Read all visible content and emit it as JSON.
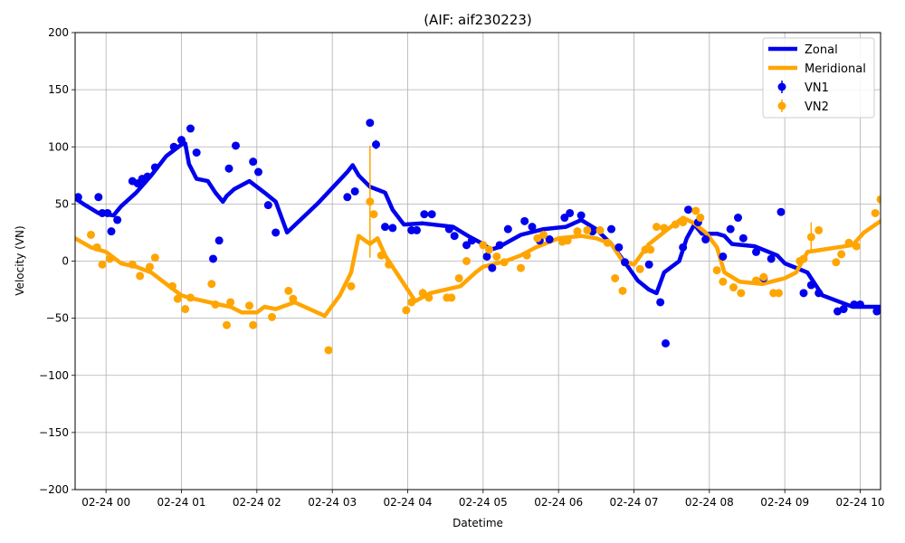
{
  "chart_data": {
    "type": "line",
    "title": "(AIF: aif230223)",
    "xlabel": "Datetime",
    "ylabel": "Velocity (VN)",
    "x_unit": "hours since 02-24 00:00",
    "xlim": [
      -0.41,
      10.27
    ],
    "ylim": [
      -200,
      200
    ],
    "grid": true,
    "legend_position": "top-right",
    "x_tick_values": [
      0,
      1,
      2,
      3,
      4,
      5,
      6,
      7,
      8,
      9,
      10
    ],
    "x_tick_labels": [
      "02-24 00",
      "02-24 01",
      "02-24 02",
      "02-24 03",
      "02-24 04",
      "02-24 05",
      "02-24 06",
      "02-24 07",
      "02-24 08",
      "02-24 09",
      "02-24 10"
    ],
    "y_tick_values": [
      -200,
      -150,
      -100,
      -50,
      0,
      50,
      100,
      150,
      200
    ],
    "y_tick_labels": [
      "−200",
      "−150",
      "−100",
      "−50",
      "0",
      "50",
      "100",
      "150",
      "200"
    ],
    "series": [
      {
        "name": "Zonal",
        "kind": "line",
        "color": "#0000ee",
        "x": [
          -0.41,
          -0.3,
          -0.1,
          0.1,
          0.2,
          0.4,
          0.6,
          0.8,
          1.0,
          1.05,
          1.1,
          1.2,
          1.35,
          1.45,
          1.55,
          1.6,
          1.7,
          1.9,
          2.1,
          2.25,
          2.4,
          2.8,
          3.2,
          3.27,
          3.35,
          3.5,
          3.7,
          3.8,
          3.95,
          4.2,
          4.6,
          4.8,
          5.0,
          5.1,
          5.2,
          5.5,
          5.8,
          6.1,
          6.3,
          6.5,
          6.7,
          6.9,
          7.05,
          7.2,
          7.3,
          7.4,
          7.6,
          7.7,
          7.8,
          7.9,
          8.1,
          8.2,
          8.3,
          8.6,
          8.9,
          9.0,
          9.3,
          9.5,
          9.7,
          9.9,
          10.1,
          10.27
        ],
        "y": [
          55,
          50,
          42,
          40,
          48,
          60,
          75,
          92,
          102,
          103,
          85,
          72,
          70,
          60,
          52,
          57,
          63,
          70,
          60,
          52,
          25,
          50,
          78,
          84,
          75,
          65,
          60,
          45,
          32,
          33,
          30,
          22,
          15,
          10,
          12,
          23,
          28,
          30,
          36,
          28,
          15,
          -3,
          -17,
          -25,
          -28,
          -10,
          0,
          20,
          32,
          24,
          24,
          22,
          15,
          13,
          5,
          -2,
          -10,
          -30,
          -35,
          -40,
          -40,
          -40
        ]
      },
      {
        "name": "Meridional",
        "kind": "line",
        "color": "#ffa500",
        "x": [
          -0.41,
          -0.2,
          0.0,
          0.1,
          0.2,
          0.4,
          0.6,
          0.8,
          1.0,
          1.1,
          1.3,
          1.5,
          1.65,
          1.8,
          2.0,
          2.1,
          2.25,
          2.5,
          2.9,
          3.1,
          3.25,
          3.35,
          3.5,
          3.6,
          3.7,
          3.85,
          4.0,
          4.1,
          4.3,
          4.5,
          4.7,
          4.9,
          5.0,
          5.3,
          5.5,
          5.7,
          6.0,
          6.3,
          6.5,
          6.7,
          6.85,
          7.0,
          7.2,
          7.45,
          7.65,
          7.8,
          7.95,
          8.1,
          8.2,
          8.4,
          8.7,
          9.0,
          9.15,
          9.3,
          9.5,
          9.7,
          9.9,
          10.05,
          10.27
        ],
        "y": [
          20,
          12,
          8,
          3,
          -2,
          -5,
          -10,
          -20,
          -30,
          -32,
          -35,
          -38,
          -40,
          -45,
          -45,
          -40,
          -42,
          -36,
          -48,
          -30,
          -10,
          22,
          15,
          20,
          5,
          -10,
          -25,
          -35,
          -28,
          -25,
          -22,
          -10,
          -5,
          0,
          5,
          12,
          20,
          22,
          20,
          15,
          0,
          -3,
          15,
          28,
          38,
          33,
          25,
          12,
          -10,
          -18,
          -20,
          -15,
          -10,
          8,
          10,
          12,
          14,
          25,
          35
        ]
      },
      {
        "name": "VN1",
        "kind": "scatter",
        "color": "#0000ee",
        "x": [
          -0.37,
          -0.1,
          -0.05,
          0.02,
          0.07,
          0.15,
          0.35,
          0.42,
          0.48,
          0.55,
          0.65,
          0.9,
          1.0,
          1.12,
          1.2,
          1.42,
          1.5,
          1.63,
          1.72,
          1.95,
          2.02,
          2.15,
          2.25,
          3.2,
          3.3,
          3.5,
          3.58,
          3.7,
          3.8,
          4.05,
          4.12,
          4.22,
          4.32,
          4.55,
          4.62,
          4.78,
          4.85,
          5.05,
          5.12,
          5.22,
          5.33,
          5.55,
          5.65,
          5.75,
          5.88,
          6.08,
          6.15,
          6.3,
          6.45,
          6.7,
          6.8,
          6.88,
          7.2,
          7.35,
          7.42,
          7.65,
          7.72,
          7.85,
          7.95,
          8.18,
          8.28,
          8.38,
          8.45,
          8.62,
          8.72,
          8.82,
          8.95,
          9.25,
          9.35,
          9.45,
          9.7,
          9.78,
          9.92,
          10.0,
          10.22
        ],
        "y": [
          56,
          56,
          42,
          42,
          26,
          36,
          70,
          68,
          72,
          74,
          82,
          100,
          106,
          116,
          95,
          2,
          18,
          81,
          101,
          87,
          78,
          49,
          25,
          56,
          61,
          121,
          102,
          30,
          29,
          27,
          27,
          41,
          41,
          28,
          22,
          14,
          18,
          4,
          -6,
          14,
          28,
          35,
          30,
          18,
          19,
          38,
          42,
          40,
          26,
          28,
          12,
          -1,
          -3,
          -36,
          -72,
          12,
          45,
          34,
          19,
          4,
          28,
          38,
          20,
          8,
          -15,
          2,
          43,
          -28,
          -21,
          -28,
          -44,
          -42,
          -38,
          -38,
          -44
        ],
        "yerr": [
          2,
          2,
          2,
          2,
          2,
          2,
          2,
          2,
          2,
          2,
          2,
          2,
          2,
          2,
          2,
          2,
          2,
          2,
          2,
          2,
          2,
          2,
          2,
          2,
          2,
          2,
          4,
          2,
          2,
          2,
          2,
          2,
          2,
          2,
          2,
          2,
          2,
          2,
          2,
          2,
          2,
          2,
          2,
          2,
          2,
          2,
          2,
          2,
          2,
          2,
          2,
          2,
          2,
          2,
          2,
          2,
          2,
          2,
          2,
          2,
          2,
          2,
          2,
          2,
          2,
          2,
          2,
          2,
          2,
          2,
          2,
          2,
          2,
          2,
          2
        ]
      },
      {
        "name": "VN2",
        "kind": "scatter",
        "color": "#ffa500",
        "x": [
          -0.2,
          -0.12,
          -0.05,
          0.05,
          0.35,
          0.45,
          0.58,
          0.65,
          0.88,
          0.95,
          1.05,
          1.12,
          1.4,
          1.45,
          1.6,
          1.65,
          1.9,
          1.95,
          2.2,
          2.42,
          2.48,
          2.95,
          3.25,
          3.5,
          3.55,
          3.65,
          3.75,
          3.98,
          4.05,
          4.2,
          4.28,
          4.52,
          4.58,
          4.68,
          4.78,
          5.0,
          5.08,
          5.18,
          5.28,
          5.5,
          5.58,
          5.72,
          5.8,
          6.05,
          6.12,
          6.25,
          6.38,
          6.55,
          6.65,
          6.75,
          6.85,
          7.08,
          7.15,
          7.22,
          7.3,
          7.4,
          7.55,
          7.65,
          7.82,
          7.88,
          8.1,
          8.18,
          8.32,
          8.42,
          8.62,
          8.72,
          8.85,
          8.92,
          9.2,
          9.25,
          9.35,
          9.45,
          9.68,
          9.75,
          9.85,
          9.95,
          10.2,
          10.27
        ],
        "y": [
          23,
          12,
          -3,
          2,
          -3,
          -13,
          -5,
          3,
          -22,
          -33,
          -42,
          -32,
          -20,
          -38,
          -56,
          -36,
          -39,
          -56,
          -49,
          -26,
          -33,
          -78,
          -22,
          52,
          41,
          5,
          -3,
          -43,
          -36,
          -28,
          -32,
          -32,
          -32,
          -15,
          0,
          14,
          10,
          4,
          -1,
          -6,
          5,
          20,
          23,
          17,
          18,
          26,
          27,
          27,
          16,
          -15,
          -26,
          -7,
          10,
          10,
          30,
          29,
          32,
          34,
          44,
          38,
          -8,
          -18,
          -23,
          -28,
          -17,
          -14,
          -28,
          -28,
          0,
          2,
          21,
          27,
          -1,
          6,
          16,
          13,
          42,
          54
        ],
        "yerr": [
          2,
          2,
          2,
          2,
          2,
          2,
          2,
          2,
          2,
          2,
          2,
          2,
          2,
          2,
          2,
          2,
          2,
          2,
          2,
          2,
          2,
          2,
          2,
          49,
          2,
          2,
          2,
          2,
          2,
          4,
          2,
          2,
          2,
          2,
          2,
          2,
          2,
          2,
          2,
          2,
          2,
          2,
          2,
          2,
          2,
          2,
          2,
          2,
          2,
          2,
          2,
          2,
          2,
          2,
          2,
          2,
          2,
          2,
          2,
          2,
          2,
          2,
          2,
          2,
          2,
          2,
          2,
          2,
          2,
          2,
          13,
          2,
          2,
          2,
          2,
          2,
          2,
          2
        ]
      }
    ]
  }
}
